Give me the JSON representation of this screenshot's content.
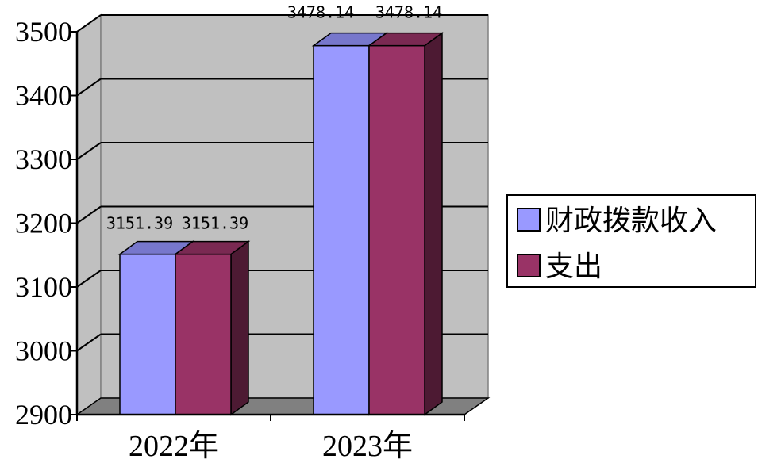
{
  "chart_data": {
    "type": "bar",
    "categories": [
      "2022年",
      "2023年"
    ],
    "series": [
      {
        "name": "财政拨款收入",
        "values": [
          3151.39,
          3478.14
        ],
        "labels": [
          "3151.39",
          "3478.14"
        ],
        "color": "#9999ff",
        "top_color": "#7777cc",
        "side_color": "#4c4c80"
      },
      {
        "name": "支出",
        "values": [
          3151.39,
          3478.14
        ],
        "labels": [
          "3151.39",
          "3478.14"
        ],
        "color": "#993366",
        "top_color": "#7a2952",
        "side_color": "#4d1a33"
      }
    ],
    "ylim": [
      2900,
      3500
    ],
    "yticks": [
      2900,
      3000,
      3100,
      3200,
      3300,
      3400,
      3500
    ],
    "grid": true,
    "legend_position": "right",
    "wall_color": "#c0c0c0",
    "floor_color": "#808080"
  }
}
